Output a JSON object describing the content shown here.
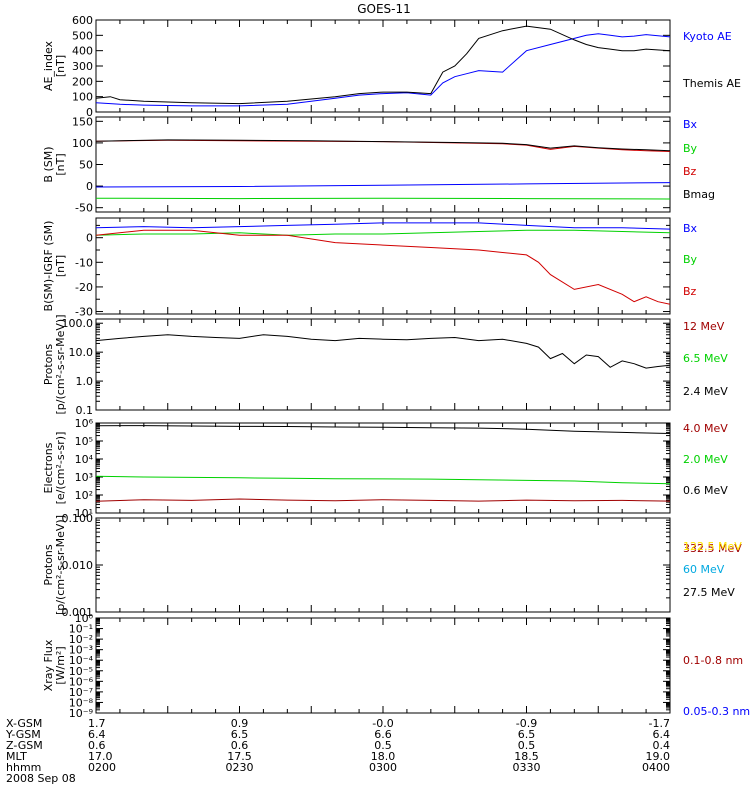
{
  "title": "GOES-11",
  "colors": {
    "black": "#000000",
    "blue": "#0000ff",
    "green": "#00d100",
    "red": "#d10000",
    "darkred": "#a00000",
    "yellow": "#ffe400",
    "cyan": "#00a8e0"
  },
  "chart_data": [
    {
      "type": "line",
      "id": "ae",
      "ylabel": [
        "AE_index",
        "[nT]"
      ],
      "ylim": [
        0,
        600
      ],
      "yticks": [
        "600",
        "500",
        "400",
        "300",
        "200",
        "100",
        "0"
      ],
      "series": [
        {
          "name": "Kyoto AE",
          "color": "blue",
          "x": [
            0,
            6,
            10,
            20,
            40,
            60,
            80,
            100,
            110,
            120,
            130,
            140,
            145,
            150,
            155,
            160,
            170,
            180,
            190,
            200,
            205,
            210,
            215,
            220,
            225,
            230,
            240
          ],
          "y": [
            60,
            55,
            50,
            45,
            40,
            40,
            50,
            90,
            110,
            120,
            125,
            110,
            190,
            230,
            250,
            270,
            260,
            400,
            440,
            480,
            500,
            510,
            500,
            490,
            495,
            505,
            490
          ]
        },
        {
          "name": "Themis AE",
          "color": "black",
          "x": [
            0,
            6,
            10,
            20,
            40,
            60,
            80,
            100,
            110,
            120,
            130,
            140,
            145,
            150,
            155,
            160,
            170,
            180,
            190,
            200,
            205,
            210,
            215,
            220,
            225,
            230,
            240
          ],
          "y": [
            90,
            100,
            80,
            70,
            60,
            55,
            70,
            100,
            120,
            130,
            130,
            120,
            260,
            300,
            380,
            480,
            530,
            560,
            540,
            470,
            440,
            420,
            410,
            400,
            400,
            410,
            400
          ]
        }
      ]
    },
    {
      "type": "line",
      "id": "b",
      "ylabel": [
        "B (SM)",
        "[nT]"
      ],
      "ylim": [
        -60,
        160
      ],
      "yticks": [
        "150",
        "100",
        "50",
        "0",
        "-50"
      ],
      "series": [
        {
          "name": "Bx",
          "color": "blue",
          "x": [
            0,
            60,
            120,
            180,
            240
          ],
          "y": [
            -2,
            -1,
            2,
            5,
            8
          ]
        },
        {
          "name": "By",
          "color": "green",
          "x": [
            0,
            60,
            120,
            180,
            240
          ],
          "y": [
            -28,
            -29,
            -28,
            -29,
            -30
          ]
        },
        {
          "name": "Bz",
          "color": "red",
          "x": [
            0,
            30,
            60,
            90,
            120,
            150,
            170,
            180,
            190,
            200,
            210,
            220,
            230,
            240
          ],
          "y": [
            104,
            106,
            105,
            104,
            103,
            100,
            98,
            95,
            85,
            92,
            88,
            84,
            82,
            80
          ]
        },
        {
          "name": "Bmag",
          "color": "black",
          "x": [
            0,
            30,
            60,
            90,
            120,
            150,
            170,
            180,
            190,
            200,
            210,
            220,
            230,
            240
          ],
          "y": [
            104,
            107,
            106,
            105,
            103,
            101,
            99,
            96,
            88,
            93,
            89,
            86,
            84,
            82
          ]
        }
      ]
    },
    {
      "type": "line",
      "id": "db",
      "ylabel": [
        "B(SM)-IGRF (SM)",
        "[nT]"
      ],
      "ylim": [
        -31,
        8
      ],
      "yticks": [
        "0",
        "-10",
        "-20",
        "-30"
      ],
      "tickvals": [
        0,
        -10,
        -20,
        -30
      ],
      "minor": [
        5,
        -5,
        -15,
        -25
      ],
      "series": [
        {
          "name": "Bx",
          "color": "blue",
          "x": [
            0,
            20,
            40,
            60,
            80,
            100,
            120,
            140,
            160,
            180,
            200,
            220,
            240
          ],
          "y": [
            4,
            4.5,
            4,
            4.5,
            5,
            5.5,
            6,
            6,
            6,
            5,
            4,
            4,
            3.5
          ]
        },
        {
          "name": "By",
          "color": "green",
          "x": [
            0,
            20,
            40,
            60,
            80,
            100,
            120,
            140,
            160,
            180,
            200,
            220,
            240
          ],
          "y": [
            1,
            1.5,
            1.5,
            2,
            1,
            1.5,
            1.5,
            2,
            2.5,
            3,
            3,
            2.5,
            2
          ]
        },
        {
          "name": "Bz",
          "color": "red",
          "x": [
            0,
            20,
            40,
            60,
            80,
            100,
            120,
            140,
            160,
            170,
            180,
            185,
            190,
            200,
            210,
            220,
            225,
            230,
            235,
            240
          ],
          "y": [
            1,
            3,
            3,
            1,
            1,
            -2,
            -3,
            -4,
            -5,
            -6,
            -7,
            -10,
            -15,
            -21,
            -19,
            -23,
            -26,
            -24,
            -26,
            -27
          ]
        }
      ]
    },
    {
      "type": "line",
      "id": "protons",
      "log": true,
      "ylabel": [
        "Protons",
        "[p/(cm²-s-sr-MeV)]"
      ],
      "ylim": [
        0.1,
        140
      ],
      "yticks": [
        "100.0",
        "10.0",
        "1.0",
        "0.1"
      ],
      "tickvals": [
        100,
        10,
        1,
        0.1
      ],
      "series": [
        {
          "name": "12 MeV",
          "color": "darkred",
          "x": [],
          "y": []
        },
        {
          "name": "6.5 MeV",
          "color": "green",
          "x": [],
          "y": []
        },
        {
          "name": "2.4 MeV",
          "color": "black",
          "x": [
            0,
            10,
            20,
            30,
            40,
            50,
            60,
            70,
            80,
            90,
            100,
            110,
            120,
            130,
            140,
            150,
            160,
            170,
            180,
            185,
            190,
            195,
            200,
            205,
            210,
            215,
            220,
            225,
            230,
            235,
            240
          ],
          "y": [
            25,
            30,
            35,
            40,
            35,
            32,
            30,
            40,
            35,
            28,
            25,
            30,
            28,
            27,
            30,
            32,
            25,
            28,
            20,
            15,
            6,
            9,
            4,
            8,
            7,
            3,
            5,
            4,
            2.8,
            3.2,
            3.5
          ]
        }
      ]
    },
    {
      "type": "line",
      "id": "electrons",
      "log": true,
      "ylabel": [
        "Electrons",
        "[e/(cm²-s-sr)]"
      ],
      "ylim": [
        10,
        1000000
      ],
      "yticks": [
        "10⁶",
        "10⁵",
        "10⁴",
        "10³",
        "10²",
        "10¹"
      ],
      "tickvals": [
        1000000,
        100000,
        10000,
        1000,
        100,
        10
      ],
      "series": [
        {
          "name": "4.0 MeV",
          "color": "darkred",
          "x": [
            0,
            20,
            40,
            60,
            80,
            100,
            120,
            140,
            160,
            180,
            200,
            220,
            240
          ],
          "y": [
            45,
            55,
            50,
            60,
            52,
            48,
            55,
            50,
            46,
            52,
            48,
            50,
            46
          ]
        },
        {
          "name": "2.0 MeV",
          "color": "green",
          "x": [
            0,
            20,
            40,
            60,
            80,
            100,
            120,
            140,
            160,
            180,
            200,
            220,
            240
          ],
          "y": [
            1100,
            1000,
            950,
            900,
            850,
            800,
            780,
            760,
            700,
            650,
            600,
            480,
            420
          ]
        },
        {
          "name": "0.6 MeV",
          "color": "black",
          "x": [
            0,
            20,
            40,
            60,
            80,
            100,
            120,
            140,
            160,
            180,
            200,
            220,
            240
          ],
          "y": [
            700000,
            720000,
            680000,
            650000,
            640000,
            600000,
            580000,
            550000,
            520000,
            450000,
            350000,
            300000,
            260000
          ]
        }
      ]
    },
    {
      "type": "line",
      "id": "hiprotons",
      "log": true,
      "ylabel": [
        "Protons",
        "[p/(cm²-s-sr-MeV)]"
      ],
      "ylim": [
        0.001,
        0.1
      ],
      "yticks": [
        "0.100",
        "0.010",
        "0.001"
      ],
      "tickvals": [
        0.1,
        0.01,
        0.001
      ],
      "series": [
        {
          "name": "332.5 MeV",
          "color": "darkred",
          "x": [],
          "y": []
        },
        {
          "name": "122.5 MeV",
          "color": "yellow",
          "x": [],
          "y": []
        },
        {
          "name": "60 MeV",
          "color": "cyan",
          "x": [],
          "y": []
        },
        {
          "name": "27.5 MeV",
          "color": "black",
          "x": [],
          "y": []
        }
      ]
    },
    {
      "type": "line",
      "id": "xray",
      "log": true,
      "ylabel": [
        "Xray Flux",
        "[W/m²]"
      ],
      "ylim": [
        1e-09,
        1
      ],
      "yticks": [
        "10⁰",
        "10⁻¹",
        "10⁻²",
        "10⁻³",
        "10⁻⁴",
        "10⁻⁵",
        "10⁻⁶",
        "10⁻⁷",
        "10⁻⁸",
        "10⁻⁹"
      ],
      "tickvals": [
        1,
        0.1,
        0.01,
        0.001,
        0.0001,
        1e-05,
        1e-06,
        1e-07,
        1e-08,
        1e-09
      ],
      "series": [
        {
          "name": "0.1-0.8 nm",
          "color": "darkred",
          "x": [],
          "y": []
        },
        {
          "name": "0.05-0.3 nm",
          "color": "blue",
          "x": [],
          "y": []
        }
      ]
    }
  ],
  "xaxis": {
    "xlim": [
      0,
      240
    ],
    "ticks": [
      0,
      60,
      120,
      180,
      240
    ],
    "rows": [
      {
        "label": "X-GSM",
        "values": [
          "1.7",
          "0.9",
          "-0.0",
          "-0.9",
          "-1.7"
        ]
      },
      {
        "label": "Y-GSM",
        "values": [
          "6.4",
          "6.5",
          "6.6",
          "6.5",
          "6.4"
        ]
      },
      {
        "label": "Z-GSM",
        "values": [
          "0.6",
          "0.6",
          "0.5",
          "0.5",
          "0.4"
        ]
      },
      {
        "label": "MLT",
        "values": [
          "17.0",
          "17.5",
          "18.0",
          "18.5",
          "19.0"
        ]
      },
      {
        "label": "hhmm",
        "values": [
          "0200",
          "0230",
          "0300",
          "0330",
          "0400"
        ]
      }
    ],
    "date": "2008 Sep 08"
  }
}
